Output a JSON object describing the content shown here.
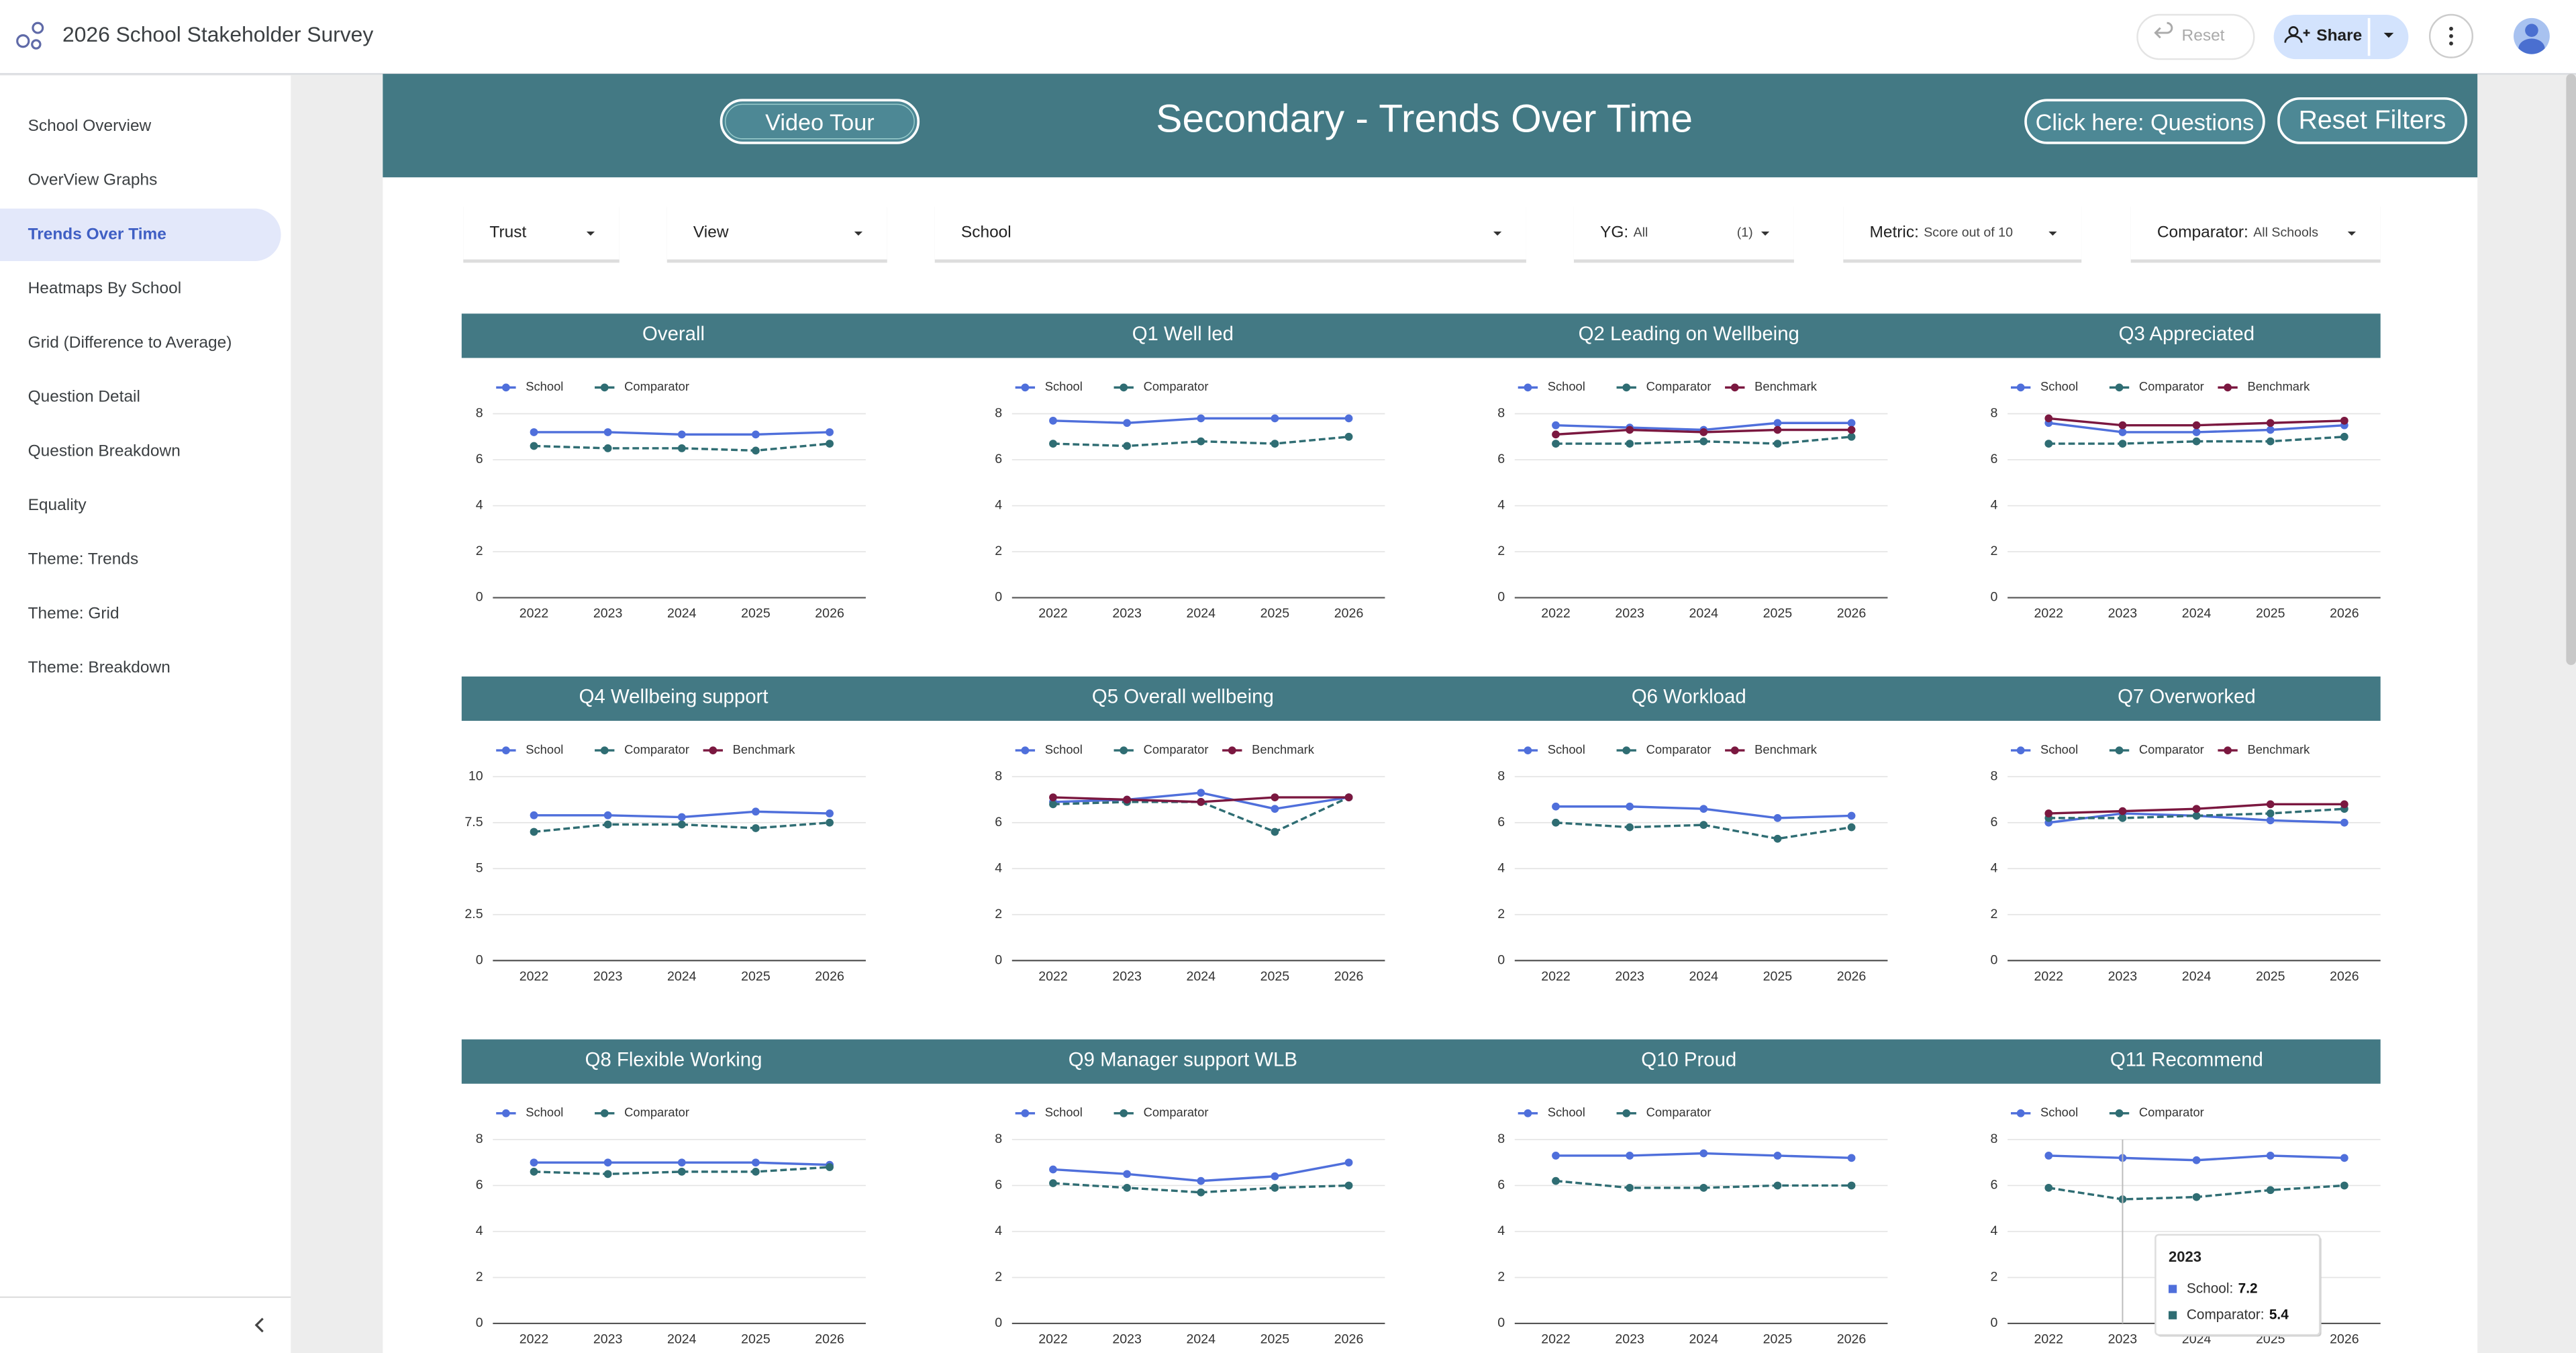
{
  "app": {
    "title": "2026 School Stakeholder Survey",
    "reset": "Reset",
    "share": "Share"
  },
  "nav": {
    "items": [
      "School Overview",
      "OverView Graphs",
      "Trends Over Time",
      "Heatmaps By School",
      "Grid (Difference to Average)",
      "Question Detail",
      "Question Breakdown",
      "Equality",
      "Theme: Trends",
      "Theme: Grid",
      "Theme: Breakdown"
    ],
    "selected": 2
  },
  "banner": {
    "title": "Secondary - Trends Over Time",
    "video": "Video Tour",
    "questions": "Click here: Questions",
    "reset": "Reset Filters"
  },
  "filters": [
    {
      "label": "Trust"
    },
    {
      "label": "View"
    },
    {
      "label": "School"
    },
    {
      "label": "YG:",
      "value": "All",
      "count": "(1)"
    },
    {
      "label": "Metric:",
      "value": "Score out of 10"
    },
    {
      "label": "Comparator:",
      "value": "All Schools"
    }
  ],
  "chart_data": [
    {
      "type": "line",
      "title": "Overall",
      "categories": [
        "2022",
        "2023",
        "2024",
        "2025",
        "2026"
      ],
      "series": [
        {
          "name": "School",
          "color": "#4f6fdb",
          "values": [
            7.2,
            7.2,
            7.1,
            7.1,
            7.2
          ]
        },
        {
          "name": "Comparator",
          "color": "#2f6d73",
          "line_style": "dashed",
          "values": [
            6.6,
            6.5,
            6.5,
            6.4,
            6.7
          ]
        }
      ],
      "ylim": [
        0,
        8
      ],
      "yticks": [
        0,
        2,
        4,
        6,
        8
      ],
      "grid": true,
      "legend": "top-left"
    },
    {
      "type": "line",
      "title": "Q1 Well led",
      "categories": [
        "2022",
        "2023",
        "2024",
        "2025",
        "2026"
      ],
      "series": [
        {
          "name": "School",
          "color": "#4f6fdb",
          "values": [
            7.7,
            7.6,
            7.8,
            7.8,
            7.8
          ]
        },
        {
          "name": "Comparator",
          "color": "#2f6d73",
          "line_style": "dashed",
          "values": [
            6.7,
            6.6,
            6.8,
            6.7,
            7.0
          ]
        }
      ],
      "ylim": [
        0,
        8
      ],
      "yticks": [
        0,
        2,
        4,
        6,
        8
      ],
      "grid": true,
      "legend": "top-left"
    },
    {
      "type": "line",
      "title": "Q2 Leading on Wellbeing",
      "categories": [
        "2022",
        "2023",
        "2024",
        "2025",
        "2026"
      ],
      "series": [
        {
          "name": "School",
          "color": "#4f6fdb",
          "values": [
            7.5,
            7.4,
            7.3,
            7.6,
            7.6
          ]
        },
        {
          "name": "Comparator",
          "color": "#2f6d73",
          "line_style": "dashed",
          "values": [
            6.7,
            6.7,
            6.8,
            6.7,
            7.0
          ]
        },
        {
          "name": "Benchmark",
          "color": "#7b1840",
          "values": [
            7.1,
            7.3,
            7.2,
            7.3,
            7.3
          ]
        }
      ],
      "ylim": [
        0,
        8
      ],
      "yticks": [
        0,
        2,
        4,
        6,
        8
      ],
      "grid": true,
      "legend": "top-left"
    },
    {
      "type": "line",
      "title": "Q3 Appreciated",
      "categories": [
        "2022",
        "2023",
        "2024",
        "2025",
        "2026"
      ],
      "series": [
        {
          "name": "School",
          "color": "#4f6fdb",
          "values": [
            7.6,
            7.2,
            7.2,
            7.3,
            7.5
          ]
        },
        {
          "name": "Comparator",
          "color": "#2f6d73",
          "line_style": "dashed",
          "values": [
            6.7,
            6.7,
            6.8,
            6.8,
            7.0
          ]
        },
        {
          "name": "Benchmark",
          "color": "#7b1840",
          "values": [
            7.8,
            7.5,
            7.5,
            7.6,
            7.7
          ]
        }
      ],
      "ylim": [
        0,
        8
      ],
      "yticks": [
        0,
        2,
        4,
        6,
        8
      ],
      "grid": true,
      "legend": "top-left"
    },
    {
      "type": "line",
      "title": "Q4 Wellbeing support",
      "categories": [
        "2022",
        "2023",
        "2024",
        "2025",
        "2026"
      ],
      "series": [
        {
          "name": "School",
          "color": "#4f6fdb",
          "values": [
            7.9,
            7.9,
            7.8,
            8.1,
            8.0
          ]
        },
        {
          "name": "Comparator",
          "color": "#2f6d73",
          "line_style": "dashed",
          "values": [
            7.0,
            7.4,
            7.4,
            7.2,
            7.5
          ]
        },
        {
          "name": "Benchmark",
          "color": "#7b1840",
          "values": [
            null,
            null,
            null,
            null,
            null
          ]
        }
      ],
      "ylim": [
        0,
        10
      ],
      "yticks": [
        0,
        2.5,
        5,
        7.5,
        10
      ],
      "grid": true,
      "legend": "top-left"
    },
    {
      "type": "line",
      "title": "Q5 Overall wellbeing",
      "categories": [
        "2022",
        "2023",
        "2024",
        "2025",
        "2026"
      ],
      "series": [
        {
          "name": "School",
          "color": "#4f6fdb",
          "values": [
            6.9,
            7.0,
            7.3,
            6.6,
            7.1
          ]
        },
        {
          "name": "Comparator",
          "color": "#2f6d73",
          "line_style": "dashed",
          "values": [
            6.8,
            6.9,
            6.9,
            5.6,
            7.1
          ]
        },
        {
          "name": "Benchmark",
          "color": "#7b1840",
          "values": [
            7.1,
            7.0,
            6.9,
            7.1,
            7.1
          ]
        }
      ],
      "ylim": [
        0,
        8
      ],
      "yticks": [
        0,
        2,
        4,
        6,
        8
      ],
      "grid": true,
      "legend": "top-left"
    },
    {
      "type": "line",
      "title": "Q6 Workload",
      "categories": [
        "2022",
        "2023",
        "2024",
        "2025",
        "2026"
      ],
      "series": [
        {
          "name": "School",
          "color": "#4f6fdb",
          "values": [
            6.7,
            6.7,
            6.6,
            6.2,
            6.3
          ]
        },
        {
          "name": "Comparator",
          "color": "#2f6d73",
          "line_style": "dashed",
          "values": [
            6.0,
            5.8,
            5.9,
            5.3,
            5.8
          ]
        },
        {
          "name": "Benchmark",
          "color": "#7b1840",
          "values": [
            null,
            null,
            null,
            null,
            null
          ]
        }
      ],
      "ylim": [
        0,
        8
      ],
      "yticks": [
        0,
        2,
        4,
        6,
        8
      ],
      "grid": true,
      "legend": "top-left"
    },
    {
      "type": "line",
      "title": "Q7 Overworked",
      "categories": [
        "2022",
        "2023",
        "2024",
        "2025",
        "2026"
      ],
      "series": [
        {
          "name": "School",
          "color": "#4f6fdb",
          "values": [
            6.0,
            6.4,
            6.3,
            6.1,
            6.0
          ]
        },
        {
          "name": "Comparator",
          "color": "#2f6d73",
          "line_style": "dashed",
          "values": [
            6.2,
            6.2,
            6.3,
            6.4,
            6.6
          ]
        },
        {
          "name": "Benchmark",
          "color": "#7b1840",
          "values": [
            6.4,
            6.5,
            6.6,
            6.8,
            6.8
          ]
        }
      ],
      "ylim": [
        0,
        8
      ],
      "yticks": [
        0,
        2,
        4,
        6,
        8
      ],
      "grid": true,
      "legend": "top-left"
    },
    {
      "type": "line",
      "title": "Q8 Flexible Working",
      "categories": [
        "2022",
        "2023",
        "2024",
        "2025",
        "2026"
      ],
      "series": [
        {
          "name": "School",
          "color": "#4f6fdb",
          "values": [
            7.0,
            7.0,
            7.0,
            7.0,
            6.9
          ]
        },
        {
          "name": "Comparator",
          "color": "#2f6d73",
          "line_style": "dashed",
          "values": [
            6.6,
            6.5,
            6.6,
            6.6,
            6.8
          ]
        }
      ],
      "ylim": [
        0,
        8
      ],
      "yticks": [
        0,
        2,
        4,
        6,
        8
      ],
      "grid": true,
      "legend": "top-left"
    },
    {
      "type": "line",
      "title": "Q9 Manager support WLB",
      "categories": [
        "2022",
        "2023",
        "2024",
        "2025",
        "2026"
      ],
      "series": [
        {
          "name": "School",
          "color": "#4f6fdb",
          "values": [
            6.7,
            6.5,
            6.2,
            6.4,
            7.0
          ]
        },
        {
          "name": "Comparator",
          "color": "#2f6d73",
          "line_style": "dashed",
          "values": [
            6.1,
            5.9,
            5.7,
            5.9,
            6.0
          ]
        }
      ],
      "ylim": [
        0,
        8
      ],
      "yticks": [
        0,
        2,
        4,
        6,
        8
      ],
      "grid": true,
      "legend": "top-left"
    },
    {
      "type": "line",
      "title": "Q10 Proud",
      "categories": [
        "2022",
        "2023",
        "2024",
        "2025",
        "2026"
      ],
      "series": [
        {
          "name": "School",
          "color": "#4f6fdb",
          "values": [
            7.3,
            7.3,
            7.4,
            7.3,
            7.2
          ]
        },
        {
          "name": "Comparator",
          "color": "#2f6d73",
          "line_style": "dashed",
          "values": [
            6.2,
            5.9,
            5.9,
            6.0,
            6.0
          ]
        }
      ],
      "ylim": [
        0,
        8
      ],
      "yticks": [
        0,
        2,
        4,
        6,
        8
      ],
      "grid": true,
      "legend": "top-left"
    },
    {
      "type": "line",
      "title": "Q11 Recommend",
      "categories": [
        "2022",
        "2023",
        "2024",
        "2025",
        "2026"
      ],
      "series": [
        {
          "name": "School",
          "color": "#4f6fdb",
          "values": [
            7.3,
            7.2,
            7.1,
            7.3,
            7.2
          ]
        },
        {
          "name": "Comparator",
          "color": "#2f6d73",
          "line_style": "dashed",
          "values": [
            5.9,
            5.4,
            5.5,
            5.8,
            6.0
          ]
        }
      ],
      "ylim": [
        0,
        8
      ],
      "yticks": [
        0,
        2,
        4,
        6,
        8
      ],
      "grid": true,
      "legend": "top-left"
    }
  ],
  "tooltip": {
    "title": "2023",
    "items": [
      {
        "label": "School:",
        "value": 7.2,
        "color": "#4f6fdb"
      },
      {
        "label": "Comparator:",
        "value": 5.4,
        "color": "#2f6d73"
      }
    ]
  }
}
